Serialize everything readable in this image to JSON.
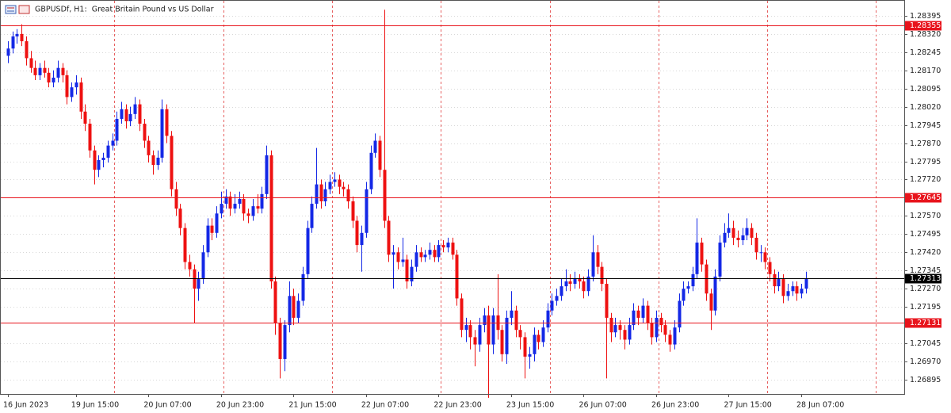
{
  "chart_data": {
    "type": "candlestick",
    "title": "GBPUSDf, H1:  Great Britain Pound vs US Dollar",
    "x": [
      "16 Jun 2023",
      null,
      null,
      null,
      null,
      null,
      null,
      null,
      null,
      null,
      null,
      null,
      null,
      null,
      null,
      "19 Jun 15:00",
      null,
      null,
      null,
      null,
      null,
      null,
      null,
      null,
      null,
      null,
      null,
      null,
      null,
      null,
      null,
      "20 Jun 07:00",
      null,
      null,
      null,
      null,
      null,
      null,
      null,
      null,
      null,
      null,
      null,
      null,
      null,
      null,
      null,
      "20 Jun 23:00",
      null,
      null,
      null,
      null,
      null,
      null,
      null,
      null,
      null,
      null,
      null,
      null,
      null,
      null,
      null,
      "21 Jun 15:00",
      null,
      null,
      null,
      null,
      null,
      null,
      null,
      null,
      null,
      null,
      null,
      null,
      null,
      null,
      null,
      "22 Jun 07:00",
      null,
      null,
      null,
      null,
      null,
      null,
      null,
      null,
      null,
      null,
      null,
      null,
      null,
      null,
      null,
      "22 Jun 23:00",
      null,
      null,
      null,
      null,
      null,
      null,
      null,
      null,
      null,
      null,
      null,
      null,
      null,
      null,
      null,
      "23 Jun 15:00",
      null,
      null,
      null,
      null,
      null,
      null,
      null,
      null,
      null,
      null,
      null,
      null,
      null,
      null,
      null,
      "26 Jun 07:00",
      null,
      null,
      null,
      null,
      null,
      null,
      null,
      null,
      null,
      null,
      null,
      null,
      null,
      null,
      null,
      "26 Jun 23:00",
      null,
      null,
      null,
      null,
      null,
      null,
      null,
      null,
      null,
      null,
      null,
      null,
      null,
      null,
      null,
      "27 Jun 15:00",
      null,
      null,
      null,
      null,
      null,
      null,
      null,
      null,
      null,
      null,
      null,
      null,
      null,
      null,
      null,
      "28 Jun 07:00",
      null
    ],
    "ohlc": [
      [
        1.2823,
        1.2829,
        1.282,
        1.2826
      ],
      [
        1.2826,
        1.2833,
        1.2824,
        1.2831
      ],
      [
        1.2831,
        1.2834,
        1.2828,
        1.2832
      ],
      [
        1.2832,
        1.2836,
        1.2827,
        1.2829
      ],
      [
        1.2829,
        1.2831,
        1.2819,
        1.2822
      ],
      [
        1.2822,
        1.2825,
        1.2816,
        1.2818
      ],
      [
        1.2818,
        1.2821,
        1.2813,
        1.2815
      ],
      [
        1.2815,
        1.282,
        1.2813,
        1.2818
      ],
      [
        1.2818,
        1.2821,
        1.2814,
        1.2816
      ],
      [
        1.2816,
        1.2818,
        1.281,
        1.2812
      ],
      [
        1.2812,
        1.2817,
        1.281,
        1.2814
      ],
      [
        1.2814,
        1.2821,
        1.2812,
        1.2818
      ],
      [
        1.2818,
        1.282,
        1.2812,
        1.2815
      ],
      [
        1.2815,
        1.2817,
        1.2803,
        1.2806
      ],
      [
        1.2806,
        1.2812,
        1.2804,
        1.281
      ],
      [
        1.281,
        1.2815,
        1.2807,
        1.2812
      ],
      [
        1.2812,
        1.2814,
        1.2797,
        1.28
      ],
      [
        1.28,
        1.2803,
        1.2792,
        1.2795
      ],
      [
        1.2795,
        1.2797,
        1.2781,
        1.2784
      ],
      [
        1.2784,
        1.2786,
        1.277,
        1.2776
      ],
      [
        1.2776,
        1.2782,
        1.2773,
        1.278
      ],
      [
        1.278,
        1.2783,
        1.2777,
        1.2781
      ],
      [
        1.2781,
        1.2788,
        1.2779,
        1.2786
      ],
      [
        1.2786,
        1.2791,
        1.2784,
        1.2788
      ],
      [
        1.2788,
        1.28,
        1.2786,
        1.2797
      ],
      [
        1.2797,
        1.2804,
        1.2795,
        1.2801
      ],
      [
        1.2801,
        1.2803,
        1.2793,
        1.2796
      ],
      [
        1.2796,
        1.2802,
        1.2794,
        1.2799
      ],
      [
        1.2799,
        1.2806,
        1.2797,
        1.2803
      ],
      [
        1.2803,
        1.2805,
        1.2792,
        1.2795
      ],
      [
        1.2795,
        1.2797,
        1.2785,
        1.2788
      ],
      [
        1.2788,
        1.279,
        1.2779,
        1.2782
      ],
      [
        1.2782,
        1.2784,
        1.2774,
        1.2778
      ],
      [
        1.2778,
        1.2784,
        1.2776,
        1.2781
      ],
      [
        1.2781,
        1.2805,
        1.2779,
        1.2801
      ],
      [
        1.2801,
        1.2803,
        1.2787,
        1.279
      ],
      [
        1.279,
        1.2792,
        1.2765,
        1.2768
      ],
      [
        1.2768,
        1.2771,
        1.2757,
        1.276
      ],
      [
        1.276,
        1.2762,
        1.2749,
        1.2752
      ],
      [
        1.2752,
        1.2754,
        1.2735,
        1.2738
      ],
      [
        1.2738,
        1.2741,
        1.2732,
        1.2735
      ],
      [
        1.2735,
        1.2737,
        1.2713,
        1.2727
      ],
      [
        1.2727,
        1.2734,
        1.2722,
        1.2731
      ],
      [
        1.2731,
        1.2745,
        1.2729,
        1.2742
      ],
      [
        1.2742,
        1.2756,
        1.274,
        1.2753
      ],
      [
        1.2753,
        1.2756,
        1.2747,
        1.275
      ],
      [
        1.275,
        1.2761,
        1.2748,
        1.2758
      ],
      [
        1.2758,
        1.2767,
        1.2756,
        1.2762
      ],
      [
        1.2762,
        1.2768,
        1.276,
        1.2765
      ],
      [
        1.2765,
        1.2767,
        1.2757,
        1.276
      ],
      [
        1.276,
        1.2766,
        1.2758,
        1.2762
      ],
      [
        1.2762,
        1.2767,
        1.276,
        1.2764
      ],
      [
        1.2764,
        1.2766,
        1.2755,
        1.2758
      ],
      [
        1.2758,
        1.276,
        1.2754,
        1.2757
      ],
      [
        1.2757,
        1.2764,
        1.2755,
        1.2761
      ],
      [
        1.2761,
        1.2766,
        1.2758,
        1.276
      ],
      [
        1.276,
        1.2769,
        1.2758,
        1.2766
      ],
      [
        1.2766,
        1.2786,
        1.2764,
        1.2782
      ],
      [
        1.2782,
        1.2784,
        1.2727,
        1.273
      ],
      [
        1.273,
        1.2732,
        1.2708,
        1.2713
      ],
      [
        1.2713,
        1.2715,
        1.269,
        1.2698
      ],
      [
        1.2698,
        1.2714,
        1.2693,
        1.2712
      ],
      [
        1.2712,
        1.273,
        1.2709,
        1.2724
      ],
      [
        1.2724,
        1.2727,
        1.2712,
        1.2715
      ],
      [
        1.2715,
        1.2725,
        1.2713,
        1.2722
      ],
      [
        1.2722,
        1.2736,
        1.272,
        1.2733
      ],
      [
        1.2733,
        1.2755,
        1.2731,
        1.2752
      ],
      [
        1.2752,
        1.2765,
        1.275,
        1.2762
      ],
      [
        1.2762,
        1.2785,
        1.276,
        1.277
      ],
      [
        1.277,
        1.2772,
        1.276,
        1.2763
      ],
      [
        1.2763,
        1.2771,
        1.2761,
        1.2768
      ],
      [
        1.2768,
        1.2774,
        1.2766,
        1.2771
      ],
      [
        1.2771,
        1.2775,
        1.2769,
        1.2772
      ],
      [
        1.2772,
        1.2774,
        1.2766,
        1.2769
      ],
      [
        1.2769,
        1.2771,
        1.2765,
        1.2768
      ],
      [
        1.2768,
        1.277,
        1.276,
        1.2763
      ],
      [
        1.2763,
        1.2765,
        1.2752,
        1.2755
      ],
      [
        1.2755,
        1.2757,
        1.2742,
        1.2745
      ],
      [
        1.2745,
        1.2753,
        1.2734,
        1.275
      ],
      [
        1.275,
        1.2771,
        1.2748,
        1.2768
      ],
      [
        1.2768,
        1.2786,
        1.2766,
        1.2783
      ],
      [
        1.2783,
        1.2791,
        1.2781,
        1.2788
      ],
      [
        1.2788,
        1.279,
        1.2773,
        1.2776
      ],
      [
        1.2776,
        1.2842,
        1.2752,
        1.2755
      ],
      [
        1.2755,
        1.2757,
        1.2738,
        1.2741
      ],
      [
        1.2741,
        1.2745,
        1.2727,
        1.2742
      ],
      [
        1.2742,
        1.2744,
        1.2735,
        1.2738
      ],
      [
        1.2738,
        1.2748,
        1.2736,
        1.2739
      ],
      [
        1.2739,
        1.2741,
        1.2727,
        1.273
      ],
      [
        1.273,
        1.2739,
        1.2728,
        1.2736
      ],
      [
        1.2736,
        1.2745,
        1.2734,
        1.2742
      ],
      [
        1.2742,
        1.2744,
        1.2738,
        1.274
      ],
      [
        1.274,
        1.2743,
        1.2738,
        1.2741
      ],
      [
        1.2741,
        1.2746,
        1.2739,
        1.2743
      ],
      [
        1.2743,
        1.2745,
        1.2738,
        1.274
      ],
      [
        1.274,
        1.2747,
        1.2738,
        1.2745
      ],
      [
        1.2745,
        1.2747,
        1.2742,
        1.2744
      ],
      [
        1.2744,
        1.2748,
        1.2742,
        1.2746
      ],
      [
        1.2746,
        1.2748,
        1.2739,
        1.2741
      ],
      [
        1.2741,
        1.2743,
        1.272,
        1.2723
      ],
      [
        1.2723,
        1.2725,
        1.2707,
        1.271
      ],
      [
        1.271,
        1.2715,
        1.2705,
        1.2712
      ],
      [
        1.2712,
        1.2714,
        1.2702,
        1.2707
      ],
      [
        1.2707,
        1.271,
        1.2695,
        1.2704
      ],
      [
        1.2704,
        1.2715,
        1.2701,
        1.2712
      ],
      [
        1.2712,
        1.2719,
        1.2709,
        1.2716
      ],
      [
        1.2716,
        1.272,
        1.2682,
        1.2704
      ],
      [
        1.2704,
        1.2719,
        1.27,
        1.2716
      ],
      [
        1.2716,
        1.2733,
        1.2706,
        1.271
      ],
      [
        1.271,
        1.2712,
        1.2697,
        1.27
      ],
      [
        1.27,
        1.2718,
        1.2696,
        1.2715
      ],
      [
        1.2715,
        1.2726,
        1.2712,
        1.2718
      ],
      [
        1.2718,
        1.272,
        1.2707,
        1.271
      ],
      [
        1.271,
        1.2712,
        1.2702,
        1.2707
      ],
      [
        1.2707,
        1.2709,
        1.269,
        1.2699
      ],
      [
        1.2699,
        1.2703,
        1.2694,
        1.27
      ],
      [
        1.27,
        1.2711,
        1.2697,
        1.2708
      ],
      [
        1.2708,
        1.271,
        1.2702,
        1.2705
      ],
      [
        1.2705,
        1.2714,
        1.2703,
        1.2711
      ],
      [
        1.2711,
        1.2721,
        1.2709,
        1.2718
      ],
      [
        1.2718,
        1.2725,
        1.2716,
        1.2722
      ],
      [
        1.2722,
        1.2727,
        1.272,
        1.2724
      ],
      [
        1.2724,
        1.2731,
        1.2722,
        1.2728
      ],
      [
        1.2728,
        1.2735,
        1.2726,
        1.273
      ],
      [
        1.273,
        1.2733,
        1.2726,
        1.2729
      ],
      [
        1.2729,
        1.2734,
        1.2727,
        1.2731
      ],
      [
        1.2731,
        1.2733,
        1.2727,
        1.273
      ],
      [
        1.273,
        1.2732,
        1.2723,
        1.2726
      ],
      [
        1.2726,
        1.2735,
        1.2724,
        1.2732
      ],
      [
        1.2732,
        1.2749,
        1.273,
        1.2742
      ],
      [
        1.2742,
        1.2745,
        1.2733,
        1.2736
      ],
      [
        1.2736,
        1.2738,
        1.2726,
        1.2729
      ],
      [
        1.2729,
        1.2731,
        1.269,
        1.2715
      ],
      [
        1.2715,
        1.2717,
        1.2705,
        1.2709
      ],
      [
        1.2709,
        1.2715,
        1.2707,
        1.2712
      ],
      [
        1.2712,
        1.2714,
        1.2706,
        1.271
      ],
      [
        1.271,
        1.2712,
        1.2702,
        1.2706
      ],
      [
        1.2706,
        1.2715,
        1.2704,
        1.2712
      ],
      [
        1.2712,
        1.2721,
        1.271,
        1.2718
      ],
      [
        1.2718,
        1.272,
        1.2712,
        1.2715
      ],
      [
        1.2715,
        1.2723,
        1.2713,
        1.272
      ],
      [
        1.272,
        1.2722,
        1.271,
        1.2713
      ],
      [
        1.2713,
        1.2715,
        1.2704,
        1.2707
      ],
      [
        1.2707,
        1.2718,
        1.2705,
        1.2715
      ],
      [
        1.2715,
        1.2717,
        1.2709,
        1.2712
      ],
      [
        1.2712,
        1.2714,
        1.2705,
        1.2708
      ],
      [
        1.2708,
        1.271,
        1.2701,
        1.2704
      ],
      [
        1.2704,
        1.2714,
        1.2702,
        1.2711
      ],
      [
        1.2711,
        1.2725,
        1.2709,
        1.2722
      ],
      [
        1.2722,
        1.273,
        1.272,
        1.2727
      ],
      [
        1.2727,
        1.273,
        1.2725,
        1.2728
      ],
      [
        1.2728,
        1.2736,
        1.2726,
        1.2733
      ],
      [
        1.2733,
        1.2756,
        1.2731,
        1.2746
      ],
      [
        1.2746,
        1.2748,
        1.2734,
        1.2737
      ],
      [
        1.2737,
        1.2739,
        1.2722,
        1.2725
      ],
      [
        1.2725,
        1.2727,
        1.271,
        1.2718
      ],
      [
        1.2718,
        1.2735,
        1.2716,
        1.2732
      ],
      [
        1.2732,
        1.2749,
        1.273,
        1.2746
      ],
      [
        1.2746,
        1.2754,
        1.2744,
        1.275
      ],
      [
        1.275,
        1.2758,
        1.2748,
        1.2752
      ],
      [
        1.2752,
        1.2755,
        1.2745,
        1.2748
      ],
      [
        1.2748,
        1.2751,
        1.2744,
        1.2747
      ],
      [
        1.2747,
        1.2752,
        1.2745,
        1.2749
      ],
      [
        1.2749,
        1.2756,
        1.2747,
        1.2752
      ],
      [
        1.2752,
        1.2754,
        1.2745,
        1.2748
      ],
      [
        1.2748,
        1.275,
        1.2739,
        1.2742
      ],
      [
        1.2742,
        1.2745,
        1.2738,
        1.2742
      ],
      [
        1.2742,
        1.2744,
        1.2735,
        1.2738
      ],
      [
        1.2738,
        1.274,
        1.273,
        1.2733
      ],
      [
        1.2733,
        1.2735,
        1.2725,
        1.2728
      ],
      [
        1.2728,
        1.2734,
        1.2726,
        1.2731
      ],
      [
        1.2731,
        1.2733,
        1.2721,
        1.2724
      ],
      [
        1.2724,
        1.2729,
        1.2722,
        1.2726
      ],
      [
        1.2726,
        1.273,
        1.2724,
        1.2728
      ],
      [
        1.2728,
        1.273,
        1.2722,
        1.2725
      ],
      [
        1.2725,
        1.2729,
        1.2723,
        1.2727
      ],
      [
        1.2727,
        1.2734,
        1.2725,
        1.27313
      ]
    ],
    "up_color": "#1428e6",
    "down_color": "#ee1111",
    "ylim": [
      1.26836,
      1.2846
    ],
    "yticks": [
      1.28395,
      {
        "value": 1.2832,
        "label": "1.28320"
      },
      1.28245,
      {
        "value": 1.2817,
        "label": "1.28170"
      },
      1.28095,
      {
        "value": 1.2802,
        "label": "1.28020"
      },
      1.27945,
      {
        "value": 1.2787,
        "label": "1.27870"
      },
      1.27795,
      {
        "value": 1.2772,
        "label": "1.27720"
      },
      {
        "value": 1.2757,
        "label": "1.27570"
      },
      1.27495,
      {
        "value": 1.2742,
        "label": "1.27420"
      },
      1.27345,
      {
        "value": 1.2727,
        "label": "1.27270"
      },
      1.27195,
      1.27045,
      {
        "value": 1.2697,
        "label": "1.26970"
      },
      1.26895
    ],
    "levels": [
      1.28355,
      1.27645,
      1.27131
    ],
    "level_color": "#e8141c",
    "current_price": 1.27313,
    "current_color": "#000000",
    "grid": true
  }
}
